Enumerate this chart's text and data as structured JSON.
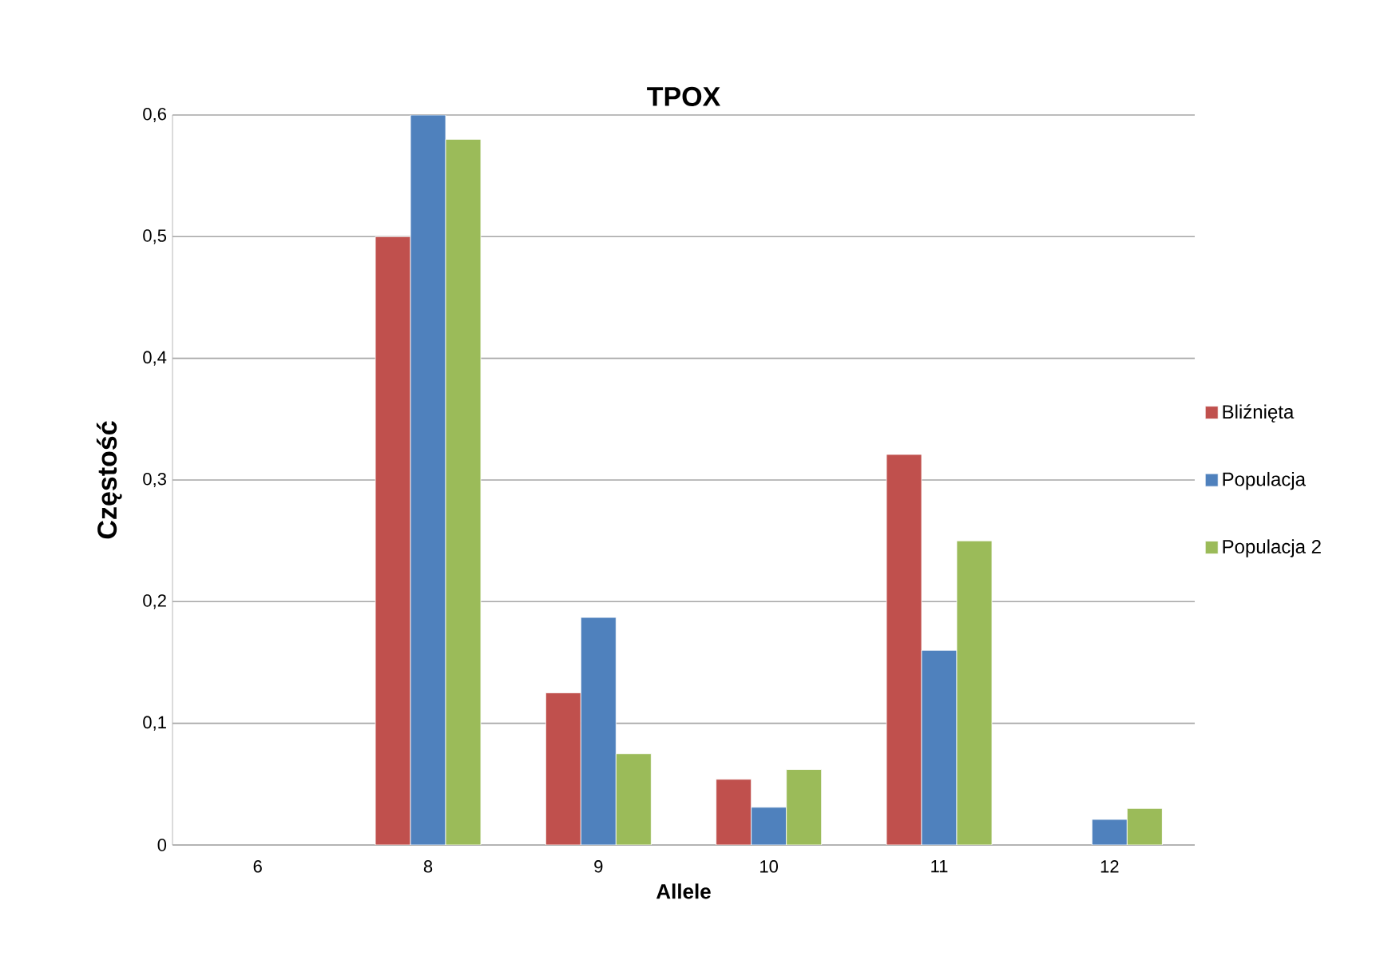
{
  "chart_data": {
    "type": "bar",
    "title": "TPOX",
    "xlabel": "Allele",
    "ylabel": "Częstość",
    "categories": [
      "6",
      "8",
      "9",
      "10",
      "11",
      "12"
    ],
    "series": [
      {
        "name": "Bliźnięta",
        "color": "#c0504d",
        "values": [
          null,
          0.5,
          0.125,
          0.054,
          0.321,
          null
        ]
      },
      {
        "name": "Populacja",
        "color": "#4f81bd",
        "values": [
          null,
          0.6,
          0.187,
          0.031,
          0.16,
          0.021
        ]
      },
      {
        "name": "Populacja 2",
        "color": "#9bbb59",
        "values": [
          null,
          0.58,
          0.075,
          0.062,
          0.25,
          0.03
        ]
      }
    ],
    "ylim": [
      0,
      0.6
    ],
    "yticks": [
      {
        "value": 0,
        "label": "0"
      },
      {
        "value": 0.1,
        "label": "0,1"
      },
      {
        "value": 0.2,
        "label": "0,2"
      },
      {
        "value": 0.3,
        "label": "0,3"
      },
      {
        "value": 0.4,
        "label": "0,4"
      },
      {
        "value": 0.5,
        "label": "0,5"
      },
      {
        "value": 0.6,
        "label": "0,6"
      }
    ],
    "grid": "y",
    "legend": "right"
  }
}
